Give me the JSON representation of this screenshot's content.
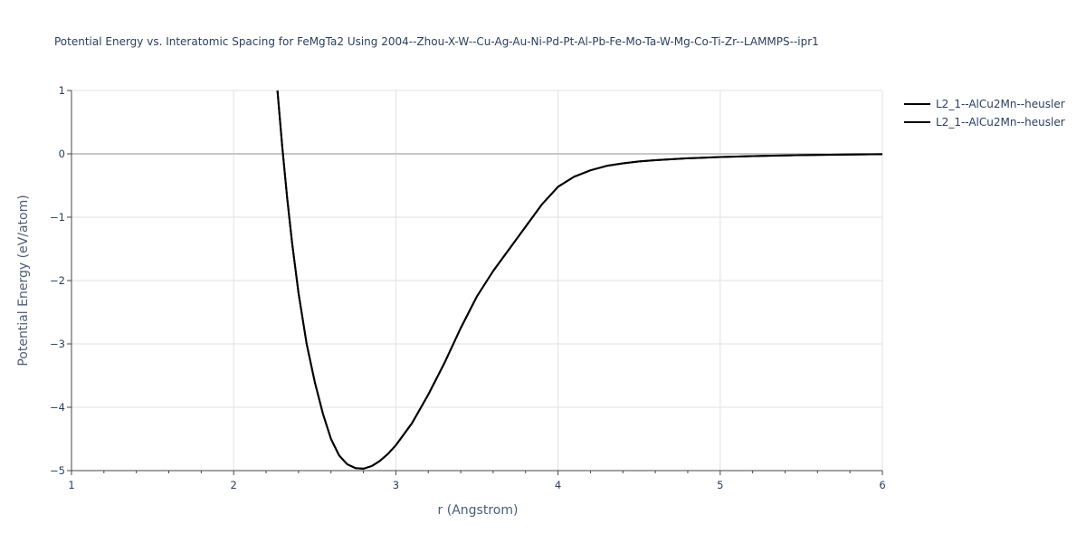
{
  "chart_data": {
    "type": "line",
    "title": "Potential Energy vs. Interatomic Spacing for FeMgTa2 Using 2004--Zhou-X-W--Cu-Ag-Au-Ni-Pd-Pt-Al-Pb-Fe-Mo-Ta-W-Mg-Co-Ti-Zr--LAMMPS--ipr1",
    "xlabel": "r (Angstrom)",
    "ylabel": "Potential Energy (eV/atom)",
    "xlim": [
      1,
      6
    ],
    "ylim": [
      -5,
      1
    ],
    "x_ticks": [
      "1",
      "2",
      "3",
      "4",
      "5",
      "6"
    ],
    "y_ticks": [
      "1",
      "0",
      "−1",
      "−2",
      "−3",
      "−4",
      "−5"
    ],
    "grid": true,
    "legend_position": "top-right",
    "series": [
      {
        "name": "L2_1--AlCu2Mn--heusler",
        "color": "#000000",
        "x": [
          2.27,
          2.3,
          2.33,
          2.36,
          2.4,
          2.45,
          2.5,
          2.55,
          2.6,
          2.65,
          2.7,
          2.75,
          2.8,
          2.85,
          2.9,
          2.95,
          3.0,
          3.1,
          3.2,
          3.3,
          3.4,
          3.5,
          3.6,
          3.7,
          3.8,
          3.9,
          4.0,
          4.1,
          4.2,
          4.3,
          4.4,
          4.5,
          4.6,
          4.8,
          5.0,
          5.2,
          5.5,
          5.8,
          6.0
        ],
        "y": [
          1.0,
          0.1,
          -0.7,
          -1.4,
          -2.2,
          -3.0,
          -3.6,
          -4.1,
          -4.5,
          -4.76,
          -4.9,
          -4.96,
          -4.97,
          -4.93,
          -4.85,
          -4.74,
          -4.6,
          -4.25,
          -3.8,
          -3.3,
          -2.75,
          -2.25,
          -1.85,
          -1.5,
          -1.15,
          -0.8,
          -0.52,
          -0.36,
          -0.26,
          -0.19,
          -0.15,
          -0.12,
          -0.1,
          -0.07,
          -0.05,
          -0.035,
          -0.02,
          -0.01,
          -0.005
        ]
      },
      {
        "name": "L2_1--AlCu2Mn--heusler",
        "color": "#000000",
        "x": [
          2.27,
          2.3,
          2.33,
          2.36,
          2.4,
          2.45,
          2.5,
          2.55,
          2.6,
          2.65,
          2.7,
          2.75,
          2.8,
          2.85,
          2.9,
          2.95,
          3.0,
          3.1,
          3.2,
          3.3,
          3.4,
          3.5,
          3.6,
          3.7,
          3.8,
          3.9,
          4.0,
          4.1,
          4.2,
          4.3,
          4.4,
          4.5,
          4.6,
          4.8,
          5.0,
          5.2,
          5.5,
          5.8,
          6.0
        ],
        "y": [
          1.0,
          0.1,
          -0.7,
          -1.4,
          -2.2,
          -3.0,
          -3.6,
          -4.1,
          -4.5,
          -4.76,
          -4.9,
          -4.96,
          -4.97,
          -4.93,
          -4.85,
          -4.74,
          -4.6,
          -4.25,
          -3.8,
          -3.3,
          -2.75,
          -2.25,
          -1.85,
          -1.5,
          -1.15,
          -0.8,
          -0.52,
          -0.36,
          -0.26,
          -0.19,
          -0.15,
          -0.12,
          -0.1,
          -0.07,
          -0.05,
          -0.035,
          -0.02,
          -0.01,
          -0.005
        ]
      }
    ]
  }
}
